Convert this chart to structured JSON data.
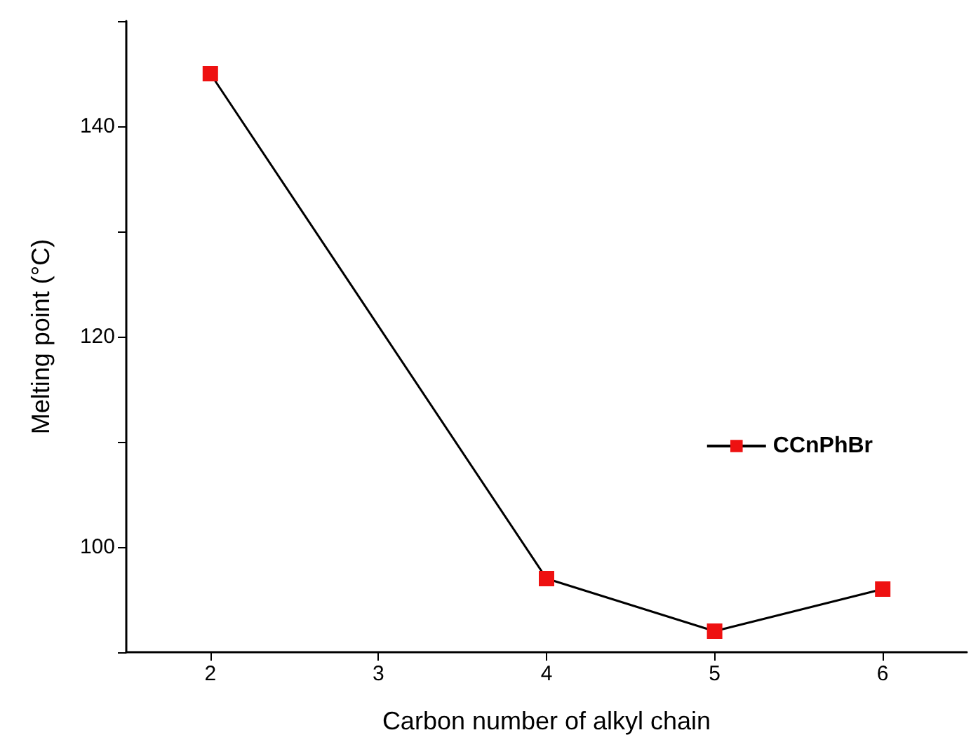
{
  "chart_data": {
    "type": "line",
    "xlabel": "Carbon number of alkyl chain",
    "ylabel": "Melting point (°C)",
    "x": [
      2,
      4,
      5,
      6
    ],
    "series": [
      {
        "name": "CCnPhBr",
        "color": "#000000",
        "colors": [
          "#ee1111",
          "#ee1111",
          "#ee1111",
          "#ee1111"
        ],
        "values": [
          145,
          97,
          92,
          96
        ]
      }
    ],
    "xlim": [
      1.5,
      6.5
    ],
    "xticks": [
      2,
      3,
      4,
      5,
      6
    ],
    "ylim": [
      90,
      150
    ],
    "yticks": [
      {
        "value": 90,
        "label": null
      },
      100,
      {
        "value": 110,
        "label": null
      },
      120,
      {
        "value": 130,
        "label": null
      },
      140,
      {
        "value": 150,
        "label": null
      }
    ],
    "marker": "square",
    "line_style": "solid",
    "grid": false,
    "legend": "right"
  }
}
